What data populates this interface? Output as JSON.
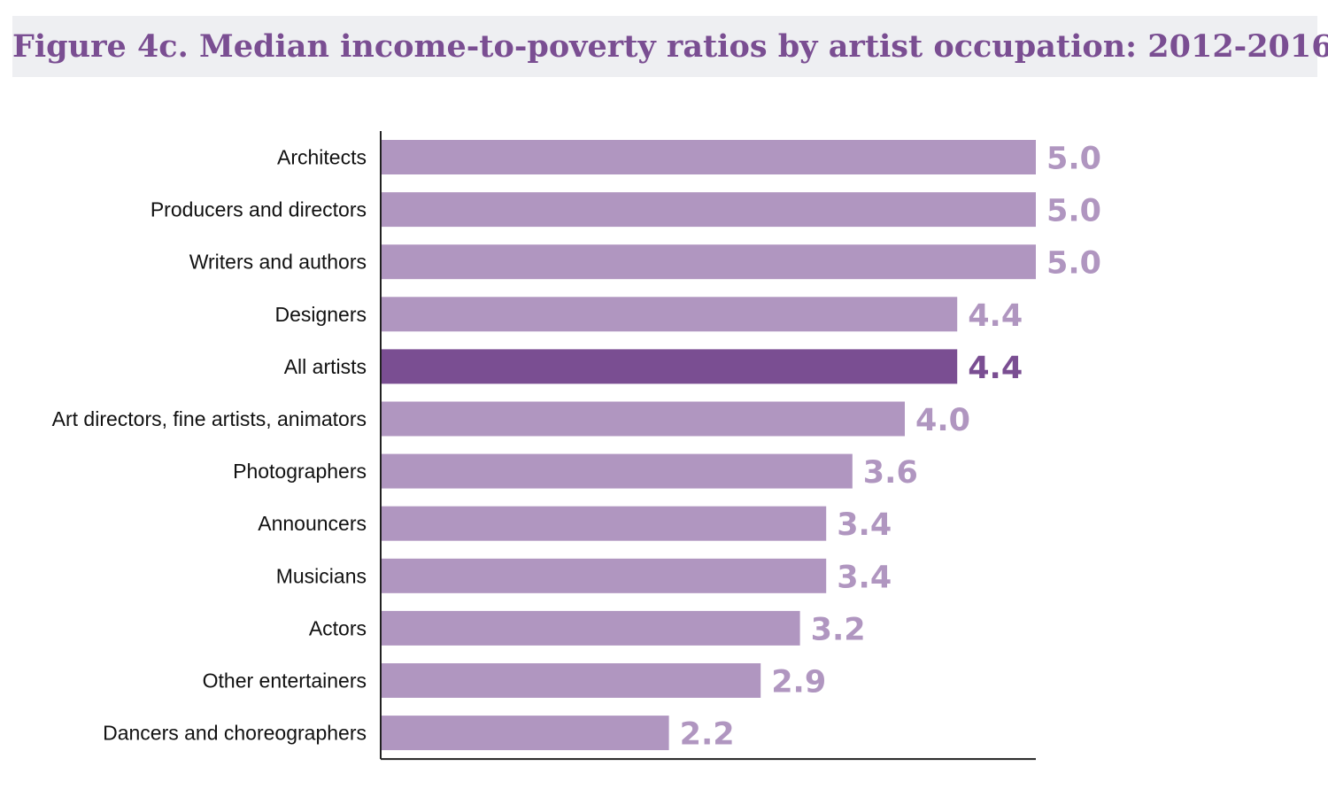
{
  "chart_data": {
    "type": "bar",
    "orientation": "horizontal",
    "title": "Figure 4c. Median income-to-poverty ratios by artist occupation: 2012-2016",
    "categories": [
      "Architects",
      "Producers and directors",
      "Writers and authors",
      "Designers",
      "All artists",
      "Art directors, fine artists, animators",
      "Photographers",
      "Announcers",
      "Musicians",
      "Actors",
      "Other entertainers",
      "Dancers and choreographers"
    ],
    "values": [
      5.0,
      5.0,
      5.0,
      4.4,
      4.4,
      4.0,
      3.6,
      3.4,
      3.4,
      3.2,
      2.9,
      2.2
    ],
    "value_labels": [
      "5.0",
      "5.0",
      "5.0",
      "4.4",
      "4.4",
      "4.0",
      "3.6",
      "3.4",
      "3.4",
      "3.2",
      "2.9",
      "2.2"
    ],
    "highlighted_category": "All artists",
    "xlim": [
      0,
      5
    ],
    "grid": false,
    "legend": "none",
    "colors": {
      "bar": "#b096c0",
      "bar_highlight": "#7a4e92",
      "label": "#b096c0",
      "label_highlight": "#7a4e92",
      "title": "#7a4e92",
      "axis": "#222222"
    }
  }
}
